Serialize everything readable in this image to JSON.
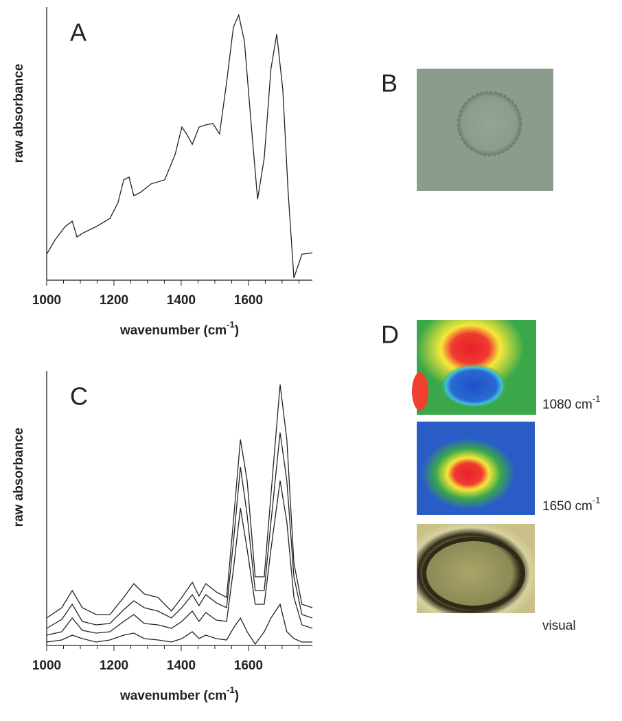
{
  "chart_data": [
    {
      "type": "line",
      "panel_label": "A",
      "y_label": "raw absorbance",
      "x_label": [
        "wavenumber (cm",
        "-1",
        ")"
      ],
      "x": [
        1000,
        1024,
        1055,
        1076,
        1090,
        1106,
        1147,
        1188,
        1212,
        1229,
        1245,
        1259,
        1280,
        1310,
        1351,
        1382,
        1402,
        1416,
        1433,
        1453,
        1473,
        1494,
        1514,
        1535,
        1555,
        1571,
        1588,
        1608,
        1627,
        1647,
        1667,
        1684,
        1702,
        1718,
        1735,
        1759,
        1790
      ],
      "series": [
        {
          "color": "#222222",
          "values": [
            9.5,
            14.6,
            19.6,
            21.6,
            15.8,
            17.1,
            19.6,
            22.6,
            28.4,
            36.7,
            37.7,
            30.9,
            32.2,
            35.2,
            36.7,
            46,
            56,
            53.5,
            49.7,
            56,
            56.8,
            57.3,
            53.5,
            72.4,
            92.5,
            97,
            87.4,
            57.3,
            29.6,
            44.7,
            77.4,
            90,
            69.8,
            32.2,
            0.8,
            9.5,
            10
          ]
        }
      ],
      "xlim": [
        1000,
        1790
      ],
      "ylim": [
        0,
        100
      ],
      "xticks": [
        1000,
        1200,
        1400,
        1600
      ],
      "xminorticks": [
        1050,
        1100,
        1150,
        1250,
        1300,
        1350,
        1450,
        1500,
        1550,
        1650,
        1700,
        1750
      ]
    },
    {
      "type": "line",
      "panel_label": "C",
      "y_label": "raw absorbance",
      "x_label": [
        "wavenumber (cm",
        "-1",
        ")"
      ],
      "x": [
        1000,
        1045,
        1076,
        1106,
        1147,
        1188,
        1229,
        1259,
        1290,
        1331,
        1371,
        1402,
        1433,
        1453,
        1473,
        1504,
        1535,
        1555,
        1576,
        1596,
        1620,
        1647,
        1667,
        1694,
        1714,
        1735,
        1759,
        1790
      ],
      "series": [
        {
          "color": "#222222",
          "values": [
            10,
            13.75,
            20,
            13.75,
            11.25,
            11.25,
            17.5,
            22.5,
            18.75,
            17.5,
            12.5,
            17.5,
            23,
            18,
            22.5,
            19.5,
            17.5,
            45,
            75,
            60,
            25,
            25,
            55,
            95,
            75,
            30,
            15,
            13.75
          ]
        },
        {
          "color": "#222222",
          "values": [
            6.25,
            9.5,
            15,
            8.75,
            7.5,
            8,
            13,
            16.25,
            13.75,
            12.5,
            10,
            13.75,
            18.5,
            14.5,
            18.5,
            15.5,
            13.75,
            37.5,
            65,
            47.5,
            20,
            20,
            45,
            77.5,
            60,
            25,
            11.25,
            10
          ]
        },
        {
          "color": "#222222",
          "values": [
            3.75,
            5,
            10,
            5.5,
            4.5,
            5,
            8.75,
            11.25,
            8,
            7.5,
            6.25,
            8.75,
            12.5,
            8.75,
            12,
            9.25,
            8.75,
            27.5,
            50,
            35,
            15,
            15,
            35,
            60,
            45,
            17.5,
            7.5,
            6.25
          ]
        },
        {
          "color": "#222222",
          "values": [
            1.25,
            2,
            3.75,
            2.5,
            1.25,
            2,
            3.75,
            4.5,
            2.5,
            2,
            1.25,
            2.5,
            5,
            2.5,
            3.75,
            2.5,
            2,
            6.25,
            10,
            5,
            0.5,
            5,
            10,
            15,
            5,
            2.5,
            1.25,
            1.25
          ]
        }
      ],
      "xlim": [
        1000,
        1790
      ],
      "ylim": [
        0,
        100
      ],
      "xticks": [
        1000,
        1200,
        1400,
        1600
      ],
      "xminorticks": [
        1050,
        1100,
        1150,
        1250,
        1300,
        1350,
        1450,
        1500,
        1550,
        1650,
        1700,
        1750
      ]
    }
  ],
  "images": {
    "B": {
      "panel_label": "B"
    },
    "D": {
      "panel_label": "D",
      "maps": [
        {
          "text": "1080 cm",
          "sup": "-1"
        },
        {
          "text": "1650 cm",
          "sup": "-1"
        },
        {
          "text": "visual"
        }
      ]
    }
  }
}
